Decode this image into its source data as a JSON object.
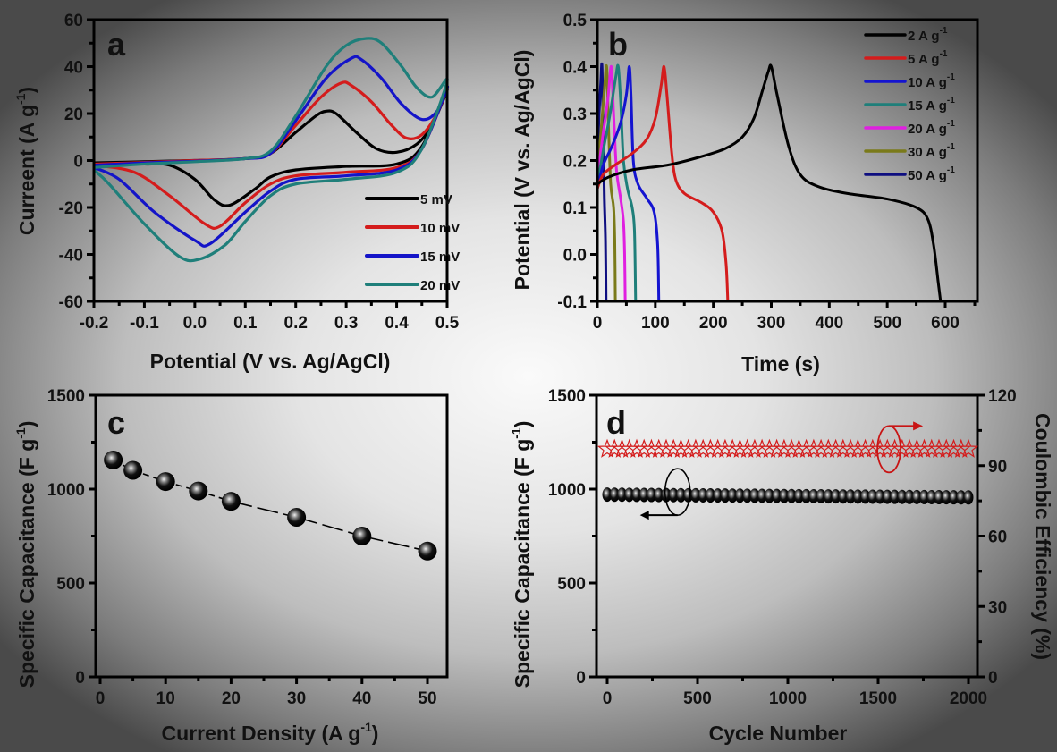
{
  "chart_data": [
    {
      "panel": "a",
      "type": "line",
      "title": "",
      "xlabel": "Potential (V vs. Ag/AgCl)",
      "ylabel": "Curreent (A g-1)",
      "ylabel_main": "Curreent (A g",
      "ylabel_sup": "-1",
      "ylabel_end": ")",
      "xlim": [
        -0.2,
        0.5
      ],
      "ylim": [
        -60,
        60
      ],
      "xticks": [
        -0.2,
        -0.1,
        0.0,
        0.1,
        0.2,
        0.3,
        0.4,
        0.5
      ],
      "xtick_labels": [
        "-0.2",
        "-0.1",
        "0.0",
        "0.1",
        "0.2",
        "0.3",
        "0.4",
        "0.5"
      ],
      "yticks": [
        -60,
        -40,
        -20,
        0,
        20,
        40,
        60
      ],
      "ytick_labels": [
        "-60",
        "-40",
        "-20",
        "0",
        "20",
        "40",
        "60"
      ],
      "legend_position": "bottom-right",
      "series": [
        {
          "name": "5  mV",
          "color": "#000000",
          "anodic": [
            [
              -0.2,
              -1
            ],
            [
              -0.1,
              -0.5
            ],
            [
              0.0,
              0
            ],
            [
              0.1,
              0.8
            ],
            [
              0.15,
              3
            ],
            [
              0.2,
              12
            ],
            [
              0.24,
              19
            ],
            [
              0.26,
              21
            ],
            [
              0.28,
              20
            ],
            [
              0.32,
              12
            ],
            [
              0.36,
              5
            ],
            [
              0.4,
              3.5
            ],
            [
              0.44,
              7
            ],
            [
              0.47,
              15
            ],
            [
              0.5,
              30
            ]
          ],
          "cathodic": [
            [
              0.5,
              30
            ],
            [
              0.45,
              6
            ],
            [
              0.4,
              -1.5
            ],
            [
              0.3,
              -2.5
            ],
            [
              0.2,
              -4
            ],
            [
              0.15,
              -7
            ],
            [
              0.12,
              -12
            ],
            [
              0.07,
              -19
            ],
            [
              0.04,
              -17
            ],
            [
              0.0,
              -8
            ],
            [
              -0.05,
              -2
            ],
            [
              -0.1,
              -1.5
            ],
            [
              -0.2,
              -1
            ]
          ]
        },
        {
          "name": "10 mV",
          "color": "#d41c1c",
          "anodic": [
            [
              -0.2,
              -1.5
            ],
            [
              -0.1,
              -0.8
            ],
            [
              0.0,
              0
            ],
            [
              0.1,
              0.8
            ],
            [
              0.15,
              3
            ],
            [
              0.2,
              15
            ],
            [
              0.25,
              27
            ],
            [
              0.29,
              33
            ],
            [
              0.31,
              32
            ],
            [
              0.35,
              25
            ],
            [
              0.39,
              15
            ],
            [
              0.42,
              9.5
            ],
            [
              0.45,
              11
            ],
            [
              0.48,
              20
            ],
            [
              0.5,
              31
            ]
          ],
          "cathodic": [
            [
              0.5,
              31
            ],
            [
              0.45,
              5
            ],
            [
              0.4,
              -3
            ],
            [
              0.3,
              -5
            ],
            [
              0.2,
              -6.5
            ],
            [
              0.15,
              -10
            ],
            [
              0.1,
              -18
            ],
            [
              0.05,
              -28
            ],
            [
              0.02,
              -27
            ],
            [
              -0.05,
              -15
            ],
            [
              -0.12,
              -5
            ],
            [
              -0.2,
              -2
            ]
          ]
        },
        {
          "name": "15 mV",
          "color": "#1414c8",
          "anodic": [
            [
              -0.2,
              -2
            ],
            [
              -0.1,
              -1
            ],
            [
              0.0,
              -0.3
            ],
            [
              0.1,
              0.8
            ],
            [
              0.15,
              3
            ],
            [
              0.2,
              17
            ],
            [
              0.26,
              35
            ],
            [
              0.31,
              43.5
            ],
            [
              0.33,
              43
            ],
            [
              0.37,
              35
            ],
            [
              0.41,
              24
            ],
            [
              0.45,
              17.5
            ],
            [
              0.48,
              21
            ],
            [
              0.5,
              31
            ]
          ],
          "cathodic": [
            [
              0.5,
              31
            ],
            [
              0.45,
              5
            ],
            [
              0.4,
              -4
            ],
            [
              0.3,
              -6.5
            ],
            [
              0.2,
              -8
            ],
            [
              0.15,
              -13
            ],
            [
              0.1,
              -22
            ],
            [
              0.03,
              -35.5
            ],
            [
              0.0,
              -34
            ],
            [
              -0.08,
              -22
            ],
            [
              -0.15,
              -8
            ],
            [
              -0.2,
              -3
            ]
          ]
        },
        {
          "name": "20 mV",
          "color": "#1f7f7a",
          "anodic": [
            [
              -0.2,
              -3
            ],
            [
              -0.1,
              -1.5
            ],
            [
              0.0,
              -0.5
            ],
            [
              0.1,
              0.8
            ],
            [
              0.15,
              4
            ],
            [
              0.2,
              19
            ],
            [
              0.26,
              40
            ],
            [
              0.3,
              49
            ],
            [
              0.34,
              52
            ],
            [
              0.37,
              50
            ],
            [
              0.41,
              40
            ],
            [
              0.44,
              31
            ],
            [
              0.47,
              27
            ],
            [
              0.5,
              34
            ]
          ],
          "cathodic": [
            [
              0.5,
              34
            ],
            [
              0.45,
              5
            ],
            [
              0.4,
              -5
            ],
            [
              0.3,
              -8
            ],
            [
              0.2,
              -10
            ],
            [
              0.15,
              -15
            ],
            [
              0.1,
              -26
            ],
            [
              0.06,
              -36
            ],
            [
              0.01,
              -42
            ],
            [
              -0.03,
              -41
            ],
            [
              -0.1,
              -27
            ],
            [
              -0.17,
              -10
            ],
            [
              -0.2,
              -4
            ]
          ]
        }
      ]
    },
    {
      "panel": "b",
      "type": "line",
      "title": "",
      "xlabel": "Time (s)",
      "ylabel": "Potential (V vs. Ag/AgCl)",
      "xlim": [
        0,
        650
      ],
      "ylim": [
        -0.1,
        0.5
      ],
      "xticks": [
        0,
        100,
        200,
        300,
        400,
        500,
        600
      ],
      "xtick_labels": [
        "0",
        "100",
        "200",
        "300",
        "400",
        "500",
        "600"
      ],
      "yticks": [
        -0.1,
        0.0,
        0.1,
        0.2,
        0.3,
        0.4,
        0.5
      ],
      "ytick_labels": [
        "-0.1",
        "0.0",
        "0.1",
        "0.2",
        "0.3",
        "0.4",
        "0.5"
      ],
      "legend_position": "top-right",
      "legend_unit": "A g",
      "legend_sup": "-1",
      "series": [
        {
          "name": "2  A g-1",
          "label": "2 ",
          "color": "#000000",
          "points": [
            [
              0,
              0.15
            ],
            [
              20,
              0.165
            ],
            [
              60,
              0.18
            ],
            [
              120,
              0.19
            ],
            [
              170,
              0.205
            ],
            [
              220,
              0.225
            ],
            [
              250,
              0.25
            ],
            [
              270,
              0.29
            ],
            [
              285,
              0.35
            ],
            [
              295,
              0.39
            ],
            [
              300,
              0.4
            ],
            [
              310,
              0.34
            ],
            [
              330,
              0.23
            ],
            [
              350,
              0.17
            ],
            [
              380,
              0.145
            ],
            [
              430,
              0.13
            ],
            [
              500,
              0.118
            ],
            [
              550,
              0.1
            ],
            [
              570,
              0.075
            ],
            [
              580,
              0.02
            ],
            [
              588,
              -0.06
            ],
            [
              592,
              -0.1
            ]
          ]
        },
        {
          "name": "5  A g-1",
          "label": "5 ",
          "color": "#d41c1c",
          "points": [
            [
              0,
              0.14
            ],
            [
              10,
              0.17
            ],
            [
              30,
              0.19
            ],
            [
              60,
              0.215
            ],
            [
              85,
              0.245
            ],
            [
              100,
              0.29
            ],
            [
              110,
              0.36
            ],
            [
              115,
              0.4
            ],
            [
              120,
              0.34
            ],
            [
              128,
              0.22
            ],
            [
              135,
              0.16
            ],
            [
              150,
              0.13
            ],
            [
              180,
              0.11
            ],
            [
              200,
              0.09
            ],
            [
              215,
              0.05
            ],
            [
              222,
              -0.02
            ],
            [
              225,
              -0.1
            ]
          ]
        },
        {
          "name": "10 A g-1",
          "label": "10",
          "color": "#1414d0",
          "points": [
            [
              0,
              0.14
            ],
            [
              10,
              0.19
            ],
            [
              25,
              0.23
            ],
            [
              40,
              0.28
            ],
            [
              50,
              0.34
            ],
            [
              55,
              0.4
            ],
            [
              58,
              0.34
            ],
            [
              62,
              0.2
            ],
            [
              70,
              0.15
            ],
            [
              85,
              0.12
            ],
            [
              98,
              0.09
            ],
            [
              104,
              0.02
            ],
            [
              106,
              -0.1
            ]
          ]
        },
        {
          "name": "15 A g-1",
          "label": "15",
          "color": "#1f7f7a",
          "points": [
            [
              0,
              0.15
            ],
            [
              10,
              0.22
            ],
            [
              22,
              0.3
            ],
            [
              32,
              0.38
            ],
            [
              36,
              0.4
            ],
            [
              40,
              0.33
            ],
            [
              45,
              0.2
            ],
            [
              52,
              0.14
            ],
            [
              60,
              0.1
            ],
            [
              64,
              0.05
            ],
            [
              66,
              -0.1
            ]
          ]
        },
        {
          "name": "20 A g-1",
          "label": "20",
          "color": "#e020e0",
          "points": [
            [
              0,
              0.16
            ],
            [
              8,
              0.24
            ],
            [
              18,
              0.33
            ],
            [
              24,
              0.4
            ],
            [
              28,
              0.3
            ],
            [
              33,
              0.18
            ],
            [
              40,
              0.12
            ],
            [
              45,
              0.07
            ],
            [
              47,
              0.0
            ],
            [
              48,
              -0.1
            ]
          ]
        },
        {
          "name": "30 A g-1",
          "label": "30",
          "color": "#7a7a1a",
          "points": [
            [
              0,
              0.17
            ],
            [
              6,
              0.26
            ],
            [
              12,
              0.35
            ],
            [
              16,
              0.4
            ],
            [
              19,
              0.28
            ],
            [
              23,
              0.15
            ],
            [
              28,
              0.1
            ],
            [
              30,
              0.03
            ],
            [
              31,
              -0.1
            ]
          ]
        },
        {
          "name": "50 A g-1",
          "label": "50",
          "color": "#0e0e80",
          "points": [
            [
              0,
              0.2
            ],
            [
              3,
              0.3
            ],
            [
              6,
              0.37
            ],
            [
              8,
              0.4
            ],
            [
              10,
              0.25
            ],
            [
              12,
              0.12
            ],
            [
              14,
              0.03
            ],
            [
              15,
              -0.1
            ]
          ]
        }
      ]
    },
    {
      "panel": "c",
      "type": "line",
      "title": "",
      "xlabel": "Current Density (A g",
      "xlabel_sup": "-1",
      "xlabel_end": ")",
      "ylabel": "Specific Capacitance (F g",
      "ylabel_sup": "-1",
      "ylabel_end": ")",
      "xlim": [
        0,
        53
      ],
      "ylim": [
        0,
        1500
      ],
      "xticks": [
        0,
        10,
        20,
        30,
        40,
        50
      ],
      "xtick_labels": [
        "0",
        "10",
        "20",
        "30",
        "40",
        "50"
      ],
      "yticks": [
        0,
        500,
        1000,
        1500
      ],
      "ytick_labels": [
        "0",
        "500",
        "1000",
        "1500"
      ],
      "x": [
        2,
        5,
        10,
        15,
        20,
        30,
        40,
        50
      ],
      "values": [
        1155,
        1100,
        1040,
        990,
        935,
        850,
        750,
        670
      ],
      "marker": "sphere",
      "line_style": "dashed"
    },
    {
      "panel": "d",
      "type": "scatter",
      "title": "",
      "xlabel": "Cycle Number",
      "ylabel": "Specific Capacitance (F g",
      "ylabel_sup": "-1",
      "ylabel_end": ")",
      "y2label": "Coulombic Efficiency (%)",
      "xlim": [
        -50,
        2050
      ],
      "ylim": [
        0,
        1500
      ],
      "y2lim": [
        0,
        120
      ],
      "xticks": [
        0,
        500,
        1000,
        1500,
        2000
      ],
      "xtick_labels": [
        "0",
        "500",
        "1000",
        "1500",
        "2000"
      ],
      "yticks": [
        0,
        500,
        1000,
        1500
      ],
      "ytick_labels": [
        "0",
        "500",
        "1000",
        "1500"
      ],
      "y2ticks": [
        0,
        30,
        60,
        90,
        120
      ],
      "y2tick_labels": [
        "0",
        "30",
        "60",
        "90",
        "120"
      ],
      "series": [
        {
          "name": "Specific Capacitance",
          "axis": "left",
          "color": "#000000",
          "marker": "sphere",
          "x_start": 0,
          "x_end": 2000,
          "count": 50,
          "y_start": 985,
          "y_end": 970
        },
        {
          "name": "Coulombic Efficiency",
          "axis": "right",
          "color": "#d41c1c",
          "marker": "star-open",
          "x_start": 0,
          "x_end": 2000,
          "count": 50,
          "y_start": 97,
          "y_end": 97
        }
      ],
      "annotations": [
        {
          "type": "ellipse-arrow",
          "target_axis": "left",
          "direction": "left",
          "at_x": 350,
          "at_y": 985
        },
        {
          "type": "ellipse-arrow",
          "target_axis": "right",
          "direction": "right",
          "at_x": 1560,
          "at_y": 97
        }
      ]
    }
  ]
}
